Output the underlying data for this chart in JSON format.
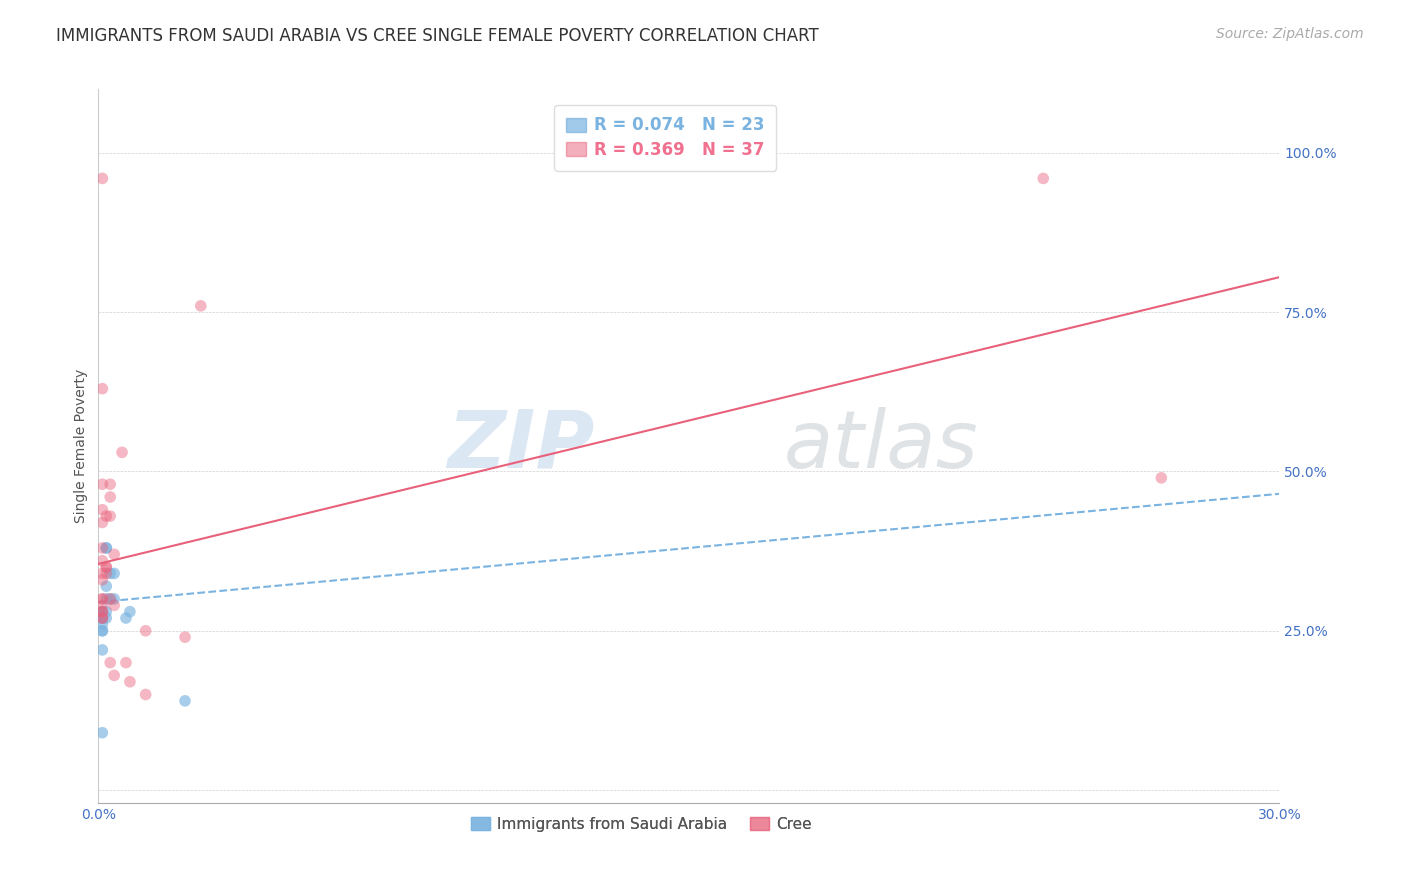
{
  "title": "IMMIGRANTS FROM SAUDI ARABIA VS CREE SINGLE FEMALE POVERTY CORRELATION CHART",
  "source": "Source: ZipAtlas.com",
  "ylabel": "Single Female Poverty",
  "yticks": [
    0.0,
    0.25,
    0.5,
    0.75,
    1.0
  ],
  "ytick_labels": [
    "",
    "25.0%",
    "50.0%",
    "75.0%",
    "100.0%"
  ],
  "xlim": [
    0.0,
    0.3
  ],
  "ylim": [
    -0.02,
    1.1
  ],
  "legend_entries": [
    {
      "label": "R = 0.074   N = 23",
      "color": "#7ab3e0"
    },
    {
      "label": "R = 0.369   N = 37",
      "color": "#f07090"
    }
  ],
  "legend_labels": [
    "Immigrants from Saudi Arabia",
    "Cree"
  ],
  "watermark_zip": "ZIP",
  "watermark_atlas": "atlas",
  "blue_scatter": [
    [
      0.001,
      0.22
    ],
    [
      0.001,
      0.25
    ],
    [
      0.001,
      0.25
    ],
    [
      0.001,
      0.26
    ],
    [
      0.001,
      0.27
    ],
    [
      0.001,
      0.27
    ],
    [
      0.001,
      0.27
    ],
    [
      0.001,
      0.28
    ],
    [
      0.001,
      0.28
    ],
    [
      0.002,
      0.27
    ],
    [
      0.002,
      0.28
    ],
    [
      0.002,
      0.3
    ],
    [
      0.002,
      0.32
    ],
    [
      0.002,
      0.38
    ],
    [
      0.002,
      0.38
    ],
    [
      0.003,
      0.3
    ],
    [
      0.003,
      0.34
    ],
    [
      0.004,
      0.3
    ],
    [
      0.004,
      0.34
    ],
    [
      0.007,
      0.27
    ],
    [
      0.008,
      0.28
    ],
    [
      0.022,
      0.14
    ],
    [
      0.001,
      0.09
    ]
  ],
  "pink_scatter": [
    [
      0.001,
      0.96
    ],
    [
      0.001,
      0.63
    ],
    [
      0.001,
      0.48
    ],
    [
      0.001,
      0.44
    ],
    [
      0.001,
      0.42
    ],
    [
      0.001,
      0.38
    ],
    [
      0.001,
      0.36
    ],
    [
      0.001,
      0.34
    ],
    [
      0.001,
      0.33
    ],
    [
      0.001,
      0.3
    ],
    [
      0.001,
      0.3
    ],
    [
      0.001,
      0.29
    ],
    [
      0.001,
      0.28
    ],
    [
      0.001,
      0.28
    ],
    [
      0.001,
      0.27
    ],
    [
      0.001,
      0.27
    ],
    [
      0.002,
      0.43
    ],
    [
      0.002,
      0.35
    ],
    [
      0.002,
      0.35
    ],
    [
      0.002,
      0.34
    ],
    [
      0.003,
      0.48
    ],
    [
      0.003,
      0.46
    ],
    [
      0.003,
      0.43
    ],
    [
      0.003,
      0.3
    ],
    [
      0.003,
      0.2
    ],
    [
      0.004,
      0.37
    ],
    [
      0.004,
      0.29
    ],
    [
      0.004,
      0.18
    ],
    [
      0.006,
      0.53
    ],
    [
      0.007,
      0.2
    ],
    [
      0.008,
      0.17
    ],
    [
      0.012,
      0.25
    ],
    [
      0.012,
      0.15
    ],
    [
      0.022,
      0.24
    ],
    [
      0.026,
      0.76
    ],
    [
      0.24,
      0.96
    ],
    [
      0.27,
      0.49
    ]
  ],
  "blue_line_color": "#7ab3e0",
  "pink_line_color": "#e8607a",
  "blue_line": {
    "x0": 0.0,
    "y0": 0.295,
    "x1": 0.3,
    "y1": 0.465
  },
  "pink_line": {
    "x0": 0.0,
    "y0": 0.355,
    "x1": 0.3,
    "y1": 0.805
  },
  "scatter_size": 70,
  "title_fontsize": 12,
  "axis_label_fontsize": 10,
  "tick_fontsize": 10,
  "source_fontsize": 10
}
